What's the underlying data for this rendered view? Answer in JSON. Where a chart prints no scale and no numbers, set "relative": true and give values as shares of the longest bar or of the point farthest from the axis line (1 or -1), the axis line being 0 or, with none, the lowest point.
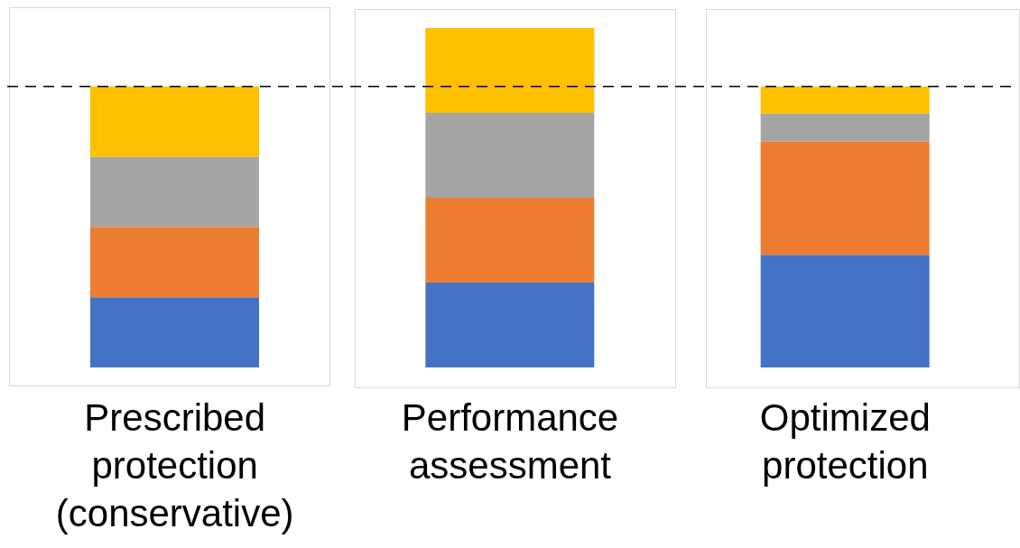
{
  "chart_data": {
    "type": "bar",
    "stacked": true,
    "relative": true,
    "categories": [
      "Prescribed protection (conservative)",
      "Performance assessment",
      "Optimized protection"
    ],
    "series": [
      {
        "color": "#4472c4",
        "values": [
          0.207,
          0.25,
          0.332
        ]
      },
      {
        "color": "#ed7d31",
        "values": [
          0.207,
          0.25,
          0.334
        ]
      },
      {
        "color": "#a5a5a5",
        "values": [
          0.207,
          0.25,
          0.082
        ]
      },
      {
        "color": "#ffc000",
        "values": [
          0.207,
          0.25,
          0.08
        ]
      }
    ],
    "ref_lines": [
      {
        "axis": "y",
        "value": 0.828,
        "color": "#000000",
        "line_style": "dashed"
      }
    ]
  }
}
